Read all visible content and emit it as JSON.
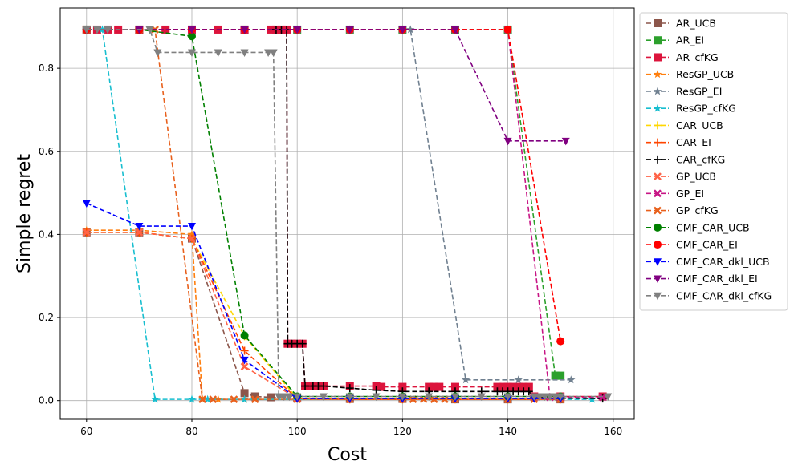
{
  "chart_data": {
    "type": "line",
    "title": "",
    "xlabel": "Cost",
    "ylabel": "Simple regret",
    "xlim": [
      55,
      164
    ],
    "ylim": [
      -0.045,
      0.945
    ],
    "xticks": [
      60,
      80,
      100,
      120,
      140,
      160
    ],
    "yticks": [
      0.0,
      0.2,
      0.4,
      0.6,
      0.8
    ],
    "xtick_labels": [
      "60",
      "80",
      "100",
      "120",
      "140",
      "160"
    ],
    "ytick_labels": [
      "0.0",
      "0.2",
      "0.4",
      "0.6",
      "0.8"
    ],
    "grid": true,
    "legend_position": "outside-right",
    "series": [
      {
        "name": "AR_UCB",
        "color": "#8c564b",
        "marker": "square",
        "x": [
          60,
          70,
          80,
          90,
          92,
          95,
          100,
          110,
          120,
          130,
          140,
          150
        ],
        "y": [
          0.405,
          0.405,
          0.39,
          0.018,
          0.01,
          0.008,
          0.005,
          0.004,
          0.004,
          0.003,
          0.003,
          0.003
        ]
      },
      {
        "name": "AR_EI",
        "color": "#2ca02c",
        "marker": "square",
        "x": [
          60,
          70,
          80,
          90,
          100,
          110,
          120,
          130,
          140,
          149,
          150
        ],
        "y": [
          0.893,
          0.893,
          0.893,
          0.893,
          0.893,
          0.893,
          0.893,
          0.893,
          0.893,
          0.06,
          0.06
        ]
      },
      {
        "name": "AR_cfKG",
        "color": "#dc143c",
        "marker": "square",
        "x": [
          60,
          62,
          64,
          66,
          70,
          75,
          80,
          85,
          90,
          95,
          96,
          97,
          98,
          98.2,
          99,
          100,
          101,
          101.5,
          103,
          104,
          105,
          110,
          115,
          116,
          120,
          125,
          126,
          127,
          130,
          138,
          139,
          140,
          141,
          142,
          143,
          144,
          145,
          150,
          158
        ],
        "y": [
          0.893,
          0.893,
          0.893,
          0.893,
          0.893,
          0.893,
          0.893,
          0.893,
          0.893,
          0.893,
          0.893,
          0.893,
          0.893,
          0.137,
          0.137,
          0.137,
          0.137,
          0.035,
          0.035,
          0.035,
          0.035,
          0.035,
          0.035,
          0.033,
          0.033,
          0.033,
          0.033,
          0.033,
          0.033,
          0.033,
          0.033,
          0.033,
          0.033,
          0.033,
          0.033,
          0.033,
          0.01,
          0.01,
          0.01
        ]
      },
      {
        "name": "ResGP_UCB",
        "color": "#ff7f0e",
        "marker": "star",
        "x": [
          60,
          70,
          80,
          82,
          85,
          90,
          100,
          110,
          120,
          130,
          140,
          150
        ],
        "y": [
          0.41,
          0.41,
          0.4,
          0.003,
          0.003,
          0.003,
          0.003,
          0.003,
          0.003,
          0.003,
          0.003,
          0.003
        ]
      },
      {
        "name": "ResGP_EI",
        "color": "#708090",
        "marker": "star",
        "x": [
          60,
          80,
          100,
          110,
          120,
          121.5,
          132,
          142,
          152
        ],
        "y": [
          0.893,
          0.893,
          0.893,
          0.893,
          0.893,
          0.893,
          0.05,
          0.05,
          0.05
        ]
      },
      {
        "name": "ResGP_cfKG",
        "color": "#17becf",
        "marker": "star",
        "x": [
          60,
          63,
          73,
          80,
          83,
          90,
          100,
          110,
          120,
          130,
          140,
          150,
          156
        ],
        "y": [
          0.893,
          0.893,
          0.003,
          0.003,
          0.003,
          0.003,
          0.003,
          0.003,
          0.003,
          0.003,
          0.003,
          0.003,
          0.003
        ]
      },
      {
        "name": "CAR_UCB",
        "color": "#ffd700",
        "marker": "plus",
        "x": [
          60,
          70,
          80,
          90,
          100,
          110,
          120,
          130,
          140,
          150
        ],
        "y": [
          0.405,
          0.405,
          0.39,
          0.155,
          0.005,
          0.003,
          0.003,
          0.003,
          0.003,
          0.003
        ]
      },
      {
        "name": "CAR_EI",
        "color": "#ff4500",
        "marker": "plus",
        "x": [
          60,
          70,
          80,
          90,
          100,
          110,
          120,
          130,
          140,
          150
        ],
        "y": [
          0.405,
          0.405,
          0.39,
          0.12,
          0.005,
          0.003,
          0.003,
          0.003,
          0.003,
          0.003
        ]
      },
      {
        "name": "CAR_cfKG",
        "color": "#000000",
        "marker": "plus",
        "x": [
          60,
          70,
          80,
          90,
          96,
          97,
          98,
          98.2,
          99,
          100,
          101,
          101.5,
          103,
          104,
          105,
          110,
          115,
          120,
          125,
          130,
          135,
          138,
          139,
          140,
          141,
          142,
          143,
          144,
          145,
          150,
          158
        ],
        "y": [
          0.893,
          0.893,
          0.893,
          0.893,
          0.893,
          0.893,
          0.893,
          0.137,
          0.137,
          0.137,
          0.137,
          0.035,
          0.035,
          0.035,
          0.035,
          0.03,
          0.025,
          0.022,
          0.022,
          0.022,
          0.022,
          0.022,
          0.022,
          0.022,
          0.022,
          0.022,
          0.022,
          0.022,
          0.008,
          0.006,
          0.005
        ]
      },
      {
        "name": "GP_UCB",
        "color": "#ff6347",
        "marker": "x",
        "x": [
          60,
          70,
          80,
          90,
          100,
          110,
          120,
          130,
          140,
          150
        ],
        "y": [
          0.405,
          0.405,
          0.39,
          0.082,
          0.005,
          0.003,
          0.003,
          0.003,
          0.003,
          0.003
        ]
      },
      {
        "name": "GP_EI",
        "color": "#c71585",
        "marker": "x",
        "x": [
          60,
          70,
          80,
          90,
          100,
          110,
          120,
          130,
          140,
          148,
          150,
          158
        ],
        "y": [
          0.893,
          0.893,
          0.893,
          0.893,
          0.893,
          0.893,
          0.893,
          0.893,
          0.893,
          0.008,
          0.008,
          0.008
        ]
      },
      {
        "name": "GP_cfKG",
        "color": "#e8601c",
        "marker": "x",
        "x": [
          60,
          70,
          73,
          82,
          84,
          88,
          92,
          100,
          110,
          120,
          122,
          124,
          126,
          128,
          130,
          140,
          145,
          150
        ],
        "y": [
          0.893,
          0.893,
          0.893,
          0.003,
          0.003,
          0.003,
          0.003,
          0.003,
          0.003,
          0.003,
          0.003,
          0.003,
          0.003,
          0.003,
          0.003,
          0.003,
          0.003,
          0.003
        ]
      },
      {
        "name": "CMF_CAR_UCB",
        "color": "#008000",
        "marker": "circle",
        "x": [
          60,
          70,
          80,
          90,
          100,
          110,
          120,
          130,
          140,
          150
        ],
        "y": [
          0.893,
          0.893,
          0.877,
          0.157,
          0.01,
          0.01,
          0.01,
          0.01,
          0.01,
          0.01
        ]
      },
      {
        "name": "CMF_CAR_EI",
        "color": "#ff0000",
        "marker": "circle",
        "x": [
          60,
          70,
          80,
          90,
          100,
          110,
          120,
          130,
          140,
          150
        ],
        "y": [
          0.893,
          0.893,
          0.893,
          0.893,
          0.893,
          0.893,
          0.893,
          0.893,
          0.893,
          0.143
        ]
      },
      {
        "name": "CMF_CAR_dkl_UCB",
        "color": "#0000ff",
        "marker": "triangle-down",
        "x": [
          60,
          70,
          80,
          90,
          100,
          110,
          120,
          130,
          140,
          145,
          150
        ],
        "y": [
          0.475,
          0.42,
          0.42,
          0.098,
          0.005,
          0.005,
          0.005,
          0.005,
          0.005,
          0.005,
          0.005
        ]
      },
      {
        "name": "CMF_CAR_dkl_EI",
        "color": "#800080",
        "marker": "triangle-down",
        "x": [
          60,
          70,
          80,
          90,
          100,
          110,
          120,
          130,
          140,
          151
        ],
        "y": [
          0.893,
          0.893,
          0.893,
          0.893,
          0.893,
          0.893,
          0.893,
          0.893,
          0.625,
          0.625
        ]
      },
      {
        "name": "CMF_CAR_dkl_cfKG",
        "color": "#808080",
        "marker": "triangle-down",
        "x": [
          60,
          62,
          64,
          72,
          73.5,
          80,
          85,
          90,
          94.5,
          95.5,
          96.5,
          97.5,
          98.5,
          100,
          105,
          110,
          115,
          120,
          125,
          130,
          135,
          140,
          145,
          146,
          147,
          148,
          149,
          150,
          159
        ],
        "y": [
          0.893,
          0.893,
          0.893,
          0.893,
          0.838,
          0.838,
          0.838,
          0.838,
          0.838,
          0.838,
          0.01,
          0.01,
          0.01,
          0.01,
          0.01,
          0.01,
          0.01,
          0.01,
          0.01,
          0.01,
          0.01,
          0.01,
          0.01,
          0.01,
          0.01,
          0.01,
          0.01,
          0.01,
          0.01
        ]
      }
    ]
  }
}
